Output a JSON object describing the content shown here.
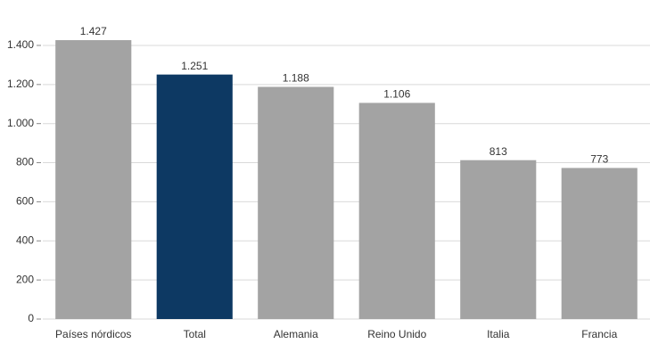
{
  "chart_data": {
    "type": "bar",
    "categories": [
      "Países nórdicos",
      "Total",
      "Alemania",
      "Reino Unido",
      "Italia",
      "Francia"
    ],
    "values": [
      1427,
      1251,
      1188,
      1106,
      813,
      773
    ],
    "value_labels": [
      "1.427",
      "1.251",
      "1.188",
      "1.106",
      "813",
      "773"
    ],
    "colors": [
      "#a3a3a3",
      "#0d3963",
      "#a3a3a3",
      "#a3a3a3",
      "#a3a3a3",
      "#a3a3a3"
    ],
    "ylim": [
      0,
      1450
    ],
    "yticks": [
      0,
      200,
      400,
      600,
      800,
      {
        "value": 1000,
        "label": "1.000"
      },
      {
        "value": 1200,
        "label": "1.200"
      },
      {
        "value": 1400,
        "label": "1.400"
      }
    ],
    "grid": true
  }
}
